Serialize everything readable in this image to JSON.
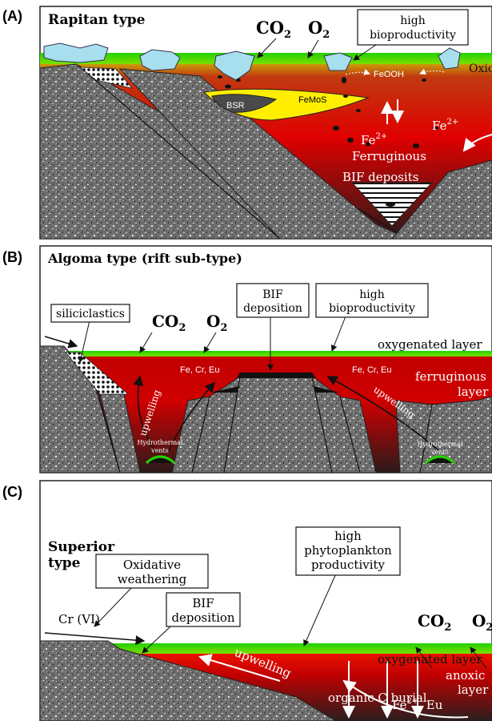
{
  "panel_a": {
    "letter": "(A)",
    "title": "Rapitan type",
    "co2": "CO",
    "o2": "O",
    "sub2": "2",
    "bioproductivity": [
      "high",
      "bioproductivity"
    ],
    "oxic": "Oxic",
    "feooh": "FeOOH",
    "femos": "FeMoS",
    "bsr": "BSR",
    "fe": "Fe",
    "sup2plus": "2+",
    "ferruginous": "Ferruginous",
    "bif_deposits": "BIF deposits"
  },
  "panel_b": {
    "letter": "(B)",
    "title": "Algoma type (rift sub-type)",
    "siliciclastics": "siliciclastics",
    "co2": "CO",
    "o2": "O",
    "sub2": "2",
    "bif_deposition": [
      "BIF",
      "deposition"
    ],
    "bioproductivity": [
      "high",
      "bioproductivity"
    ],
    "oxygenated_layer": "oxygenated layer",
    "fe_cr_eu": "Fe, Cr, Eu",
    "ferruginous_layer": [
      "ferruginous",
      "layer"
    ],
    "upwelling": "upwelling",
    "hydrothermal_vents": [
      "Hydrothermal",
      "vents"
    ]
  },
  "panel_c": {
    "letter": "(C)",
    "title": [
      "Superior",
      "type"
    ],
    "oxidative_weathering": [
      "Oxidative",
      "weathering"
    ],
    "cr_vi": "Cr (VI)",
    "bif_deposition": [
      "BIF",
      "deposition"
    ],
    "phytoplankton": [
      "high",
      "phytoplankton",
      "productivity"
    ],
    "co2": "CO",
    "o2": "O",
    "sub2": "2",
    "oxygenated_layer": "oxygenated layer",
    "anoxic_layer": [
      "anoxic",
      "layer"
    ],
    "upwelling": "upwelling",
    "organic_c_burial": "organic C burial",
    "fe_eu": "Fe",
    "fe_eu_rest": ", Eu",
    "sup2plus": "2+"
  }
}
